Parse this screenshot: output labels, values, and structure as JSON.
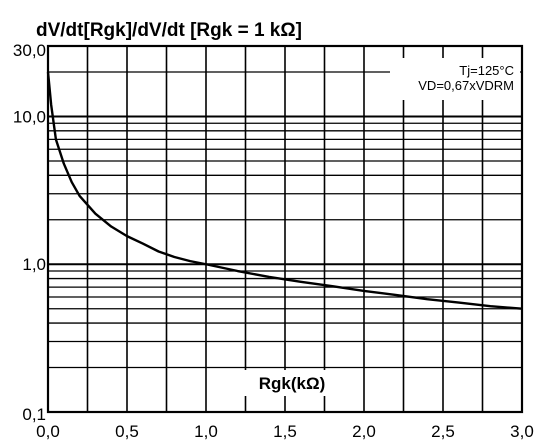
{
  "chart_data": {
    "type": "line",
    "title": "dV/dt[Rgk]/dV/dt [Rgk = 1 kΩ]",
    "xlabel": "Rgk(kΩ)",
    "ylabel": "",
    "xlim": [
      0,
      3.0
    ],
    "ylim": [
      0.1,
      30.0
    ],
    "y_scale": "log",
    "grid": true,
    "x_ticks": [
      "0,0",
      "0,5",
      "1,0",
      "1,5",
      "2,0",
      "2,5",
      "3,0"
    ],
    "y_ticks": [
      {
        "value": 30.0,
        "label": "30,0"
      },
      {
        "value": 10.0,
        "label": "10,0"
      },
      {
        "value": 1.0,
        "label": "1,0"
      },
      {
        "value": 0.1,
        "label": "0,1"
      }
    ],
    "annotations": [
      "Tj=125°C",
      "VD=0,67xVDRM"
    ],
    "series": [
      {
        "x": [
          0.0,
          0.02,
          0.05,
          0.1,
          0.15,
          0.2,
          0.3,
          0.4,
          0.5,
          0.6,
          0.7,
          0.8,
          0.9,
          1.0,
          1.2,
          1.4,
          1.6,
          1.8,
          2.0,
          2.2,
          2.4,
          2.6,
          2.8,
          3.0
        ],
        "y": [
          20.0,
          12.0,
          7.0,
          4.8,
          3.6,
          2.9,
          2.2,
          1.8,
          1.55,
          1.38,
          1.22,
          1.12,
          1.05,
          1.0,
          0.9,
          0.82,
          0.76,
          0.71,
          0.66,
          0.62,
          0.58,
          0.55,
          0.52,
          0.5
        ]
      }
    ]
  }
}
